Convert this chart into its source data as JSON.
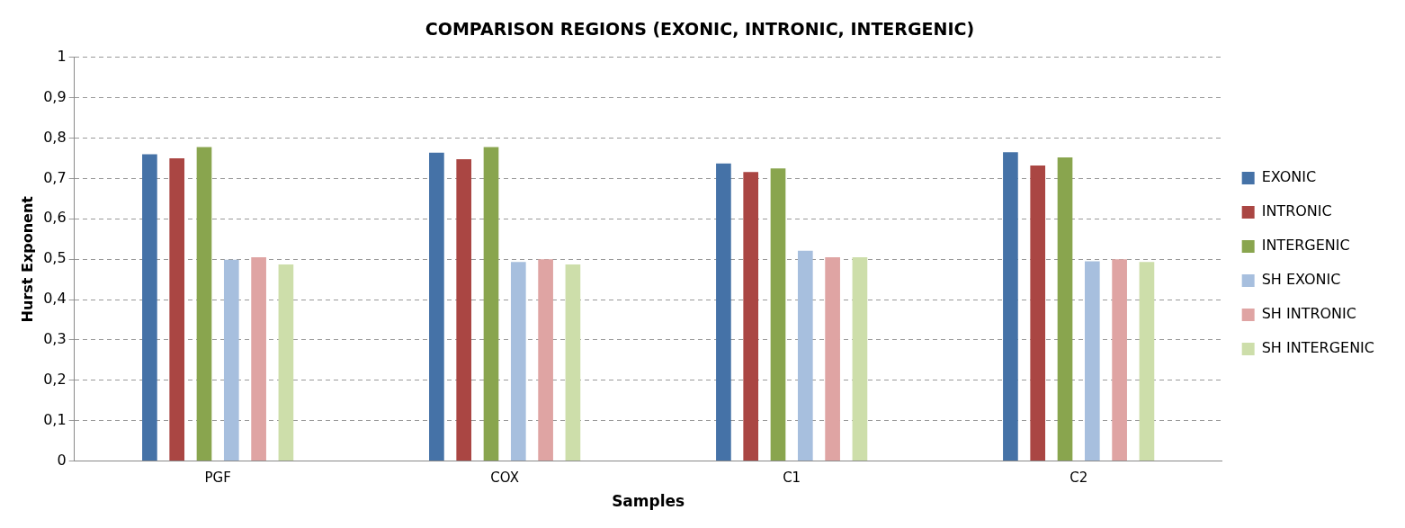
{
  "chart_data": {
    "type": "bar",
    "title": "COMPARISON REGIONS (EXONIC, INTRONIC, INTERGENIC)",
    "xlabel": "Samples",
    "ylabel": "Hurst Exponent",
    "categories": [
      "PGF",
      "COX",
      "C1",
      "C2"
    ],
    "series": [
      {
        "name": "EXONIC",
        "color": "#4572a7",
        "values": [
          0.76,
          0.764,
          0.737,
          0.765
        ]
      },
      {
        "name": "INTRONIC",
        "color": "#aa4643",
        "values": [
          0.75,
          0.748,
          0.716,
          0.732
        ]
      },
      {
        "name": "INTERGENIC",
        "color": "#89a54e",
        "values": [
          0.778,
          0.778,
          0.725,
          0.752
        ]
      },
      {
        "name": "SH EXONIC",
        "color": "#a7bfde",
        "values": [
          0.499,
          0.493,
          0.521,
          0.495
        ]
      },
      {
        "name": "SH INTRONIC",
        "color": "#dfa4a3",
        "values": [
          0.505,
          0.5,
          0.505,
          0.5
        ]
      },
      {
        "name": "SH INTERGENIC",
        "color": "#cddeaa",
        "values": [
          0.487,
          0.487,
          0.505,
          0.493
        ]
      }
    ],
    "ylim": [
      0,
      1
    ],
    "yticks": [
      0,
      {
        "value": 0.1,
        "label": "0,1"
      },
      {
        "value": 0.2,
        "label": "0,2"
      },
      {
        "value": 0.3,
        "label": "0,3"
      },
      {
        "value": 0.4,
        "label": "0,4"
      },
      {
        "value": 0.5,
        "label": "0,5"
      },
      {
        "value": 0.6,
        "label": "0,6"
      },
      {
        "value": 0.7,
        "label": "0,7"
      },
      {
        "value": 0.8,
        "label": "0,8"
      },
      {
        "value": 0.9,
        "label": "0,9"
      },
      1
    ],
    "grid": "y",
    "legend": "right"
  }
}
